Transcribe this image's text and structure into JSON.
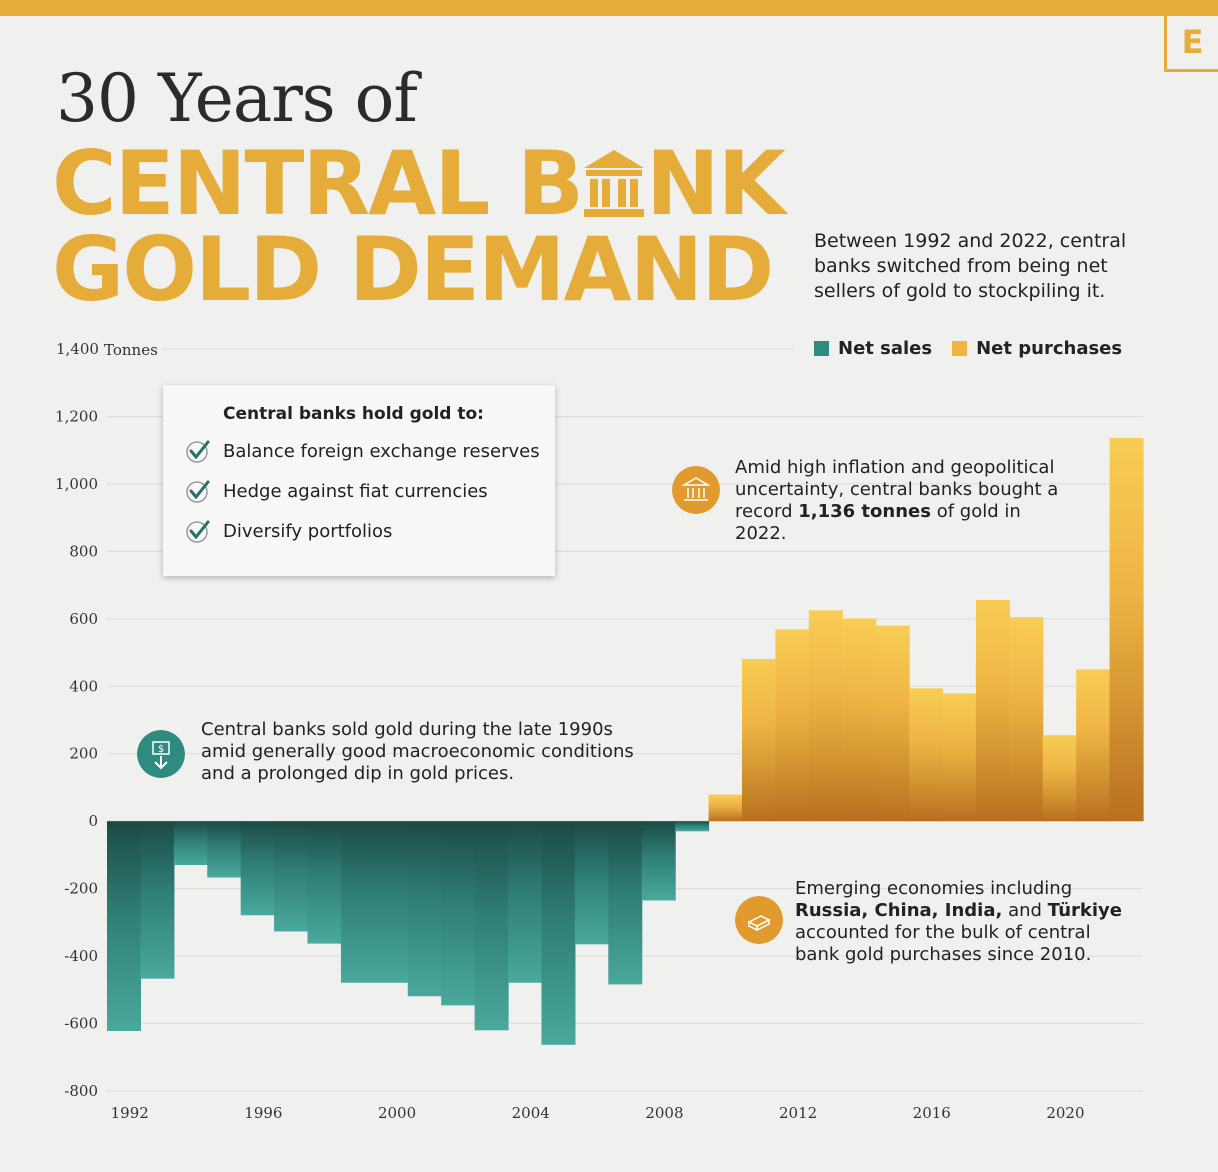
{
  "header": {
    "title_line1": "30 Years of",
    "title_line2_a": "CENTRAL B",
    "title_line2_b": "NK",
    "title_line3": "GOLD DEMAND",
    "logo": "E",
    "intro": "Between 1992 and 2022, central banks switched from being net sellers of gold to stockpiling it."
  },
  "legend": {
    "net_sales": "Net sales",
    "net_purchases": "Net purchases"
  },
  "infobox": {
    "title": "Central banks hold gold to:",
    "items": [
      "Balance foreign exchange reserves",
      "Hedge against fiat currencies",
      "Diversify portfolios"
    ]
  },
  "notes": {
    "sold": "Central banks sold gold during the late 1990s amid generally good macroeconomic conditions and a prolonged dip in gold prices.",
    "record_a": "Amid high inflation and geopolitical uncertainty, central banks bought a record ",
    "record_b": "1,136 tonnes",
    "record_c": " of gold in 2022.",
    "emerging_a": "Emerging economies including ",
    "emerging_b": "Russia, China, India,",
    "emerging_c": " and ",
    "emerging_d": "Türkiye",
    "emerging_e": " accounted for the bulk of central bank gold purchases since 2010."
  },
  "colors": {
    "sales": "#2f8b80",
    "sales_dark": "#1c4a46",
    "purchases": "#f2b43d",
    "purchases_dark": "#b8701f",
    "accent": "#e6ac3a"
  },
  "icons": {
    "sold_icon": "falling-dollar-icon",
    "record_icon": "bank-icon",
    "emerging_icon": "gold-bars-icon",
    "check_icon": "check-icon"
  },
  "chart_data": {
    "type": "bar",
    "ylabel": "Tonnes",
    "ylim": [
      -800,
      1400
    ],
    "yticks": [
      1400,
      1200,
      1000,
      800,
      600,
      400,
      200,
      0,
      -200,
      -400,
      -600,
      -800
    ],
    "xtick_labels": [
      "1992",
      "1996",
      "2000",
      "2004",
      "2008",
      "2012",
      "2016",
      "2020"
    ],
    "categories": [
      1992,
      1993,
      1994,
      1995,
      1996,
      1997,
      1998,
      1999,
      2000,
      2001,
      2002,
      2003,
      2004,
      2005,
      2006,
      2007,
      2008,
      2009,
      2010,
      2011,
      2012,
      2013,
      2014,
      2015,
      2016,
      2017,
      2018,
      2019,
      2020,
      2021,
      2022
    ],
    "values": [
      -622,
      -467,
      -130,
      -167,
      -279,
      -327,
      -363,
      -479,
      -479,
      -519,
      -546,
      -620,
      -479,
      -663,
      -365,
      -484,
      -235,
      -30,
      79,
      481,
      569,
      625,
      601,
      580,
      394,
      379,
      656,
      605,
      255,
      450,
      1136
    ]
  }
}
